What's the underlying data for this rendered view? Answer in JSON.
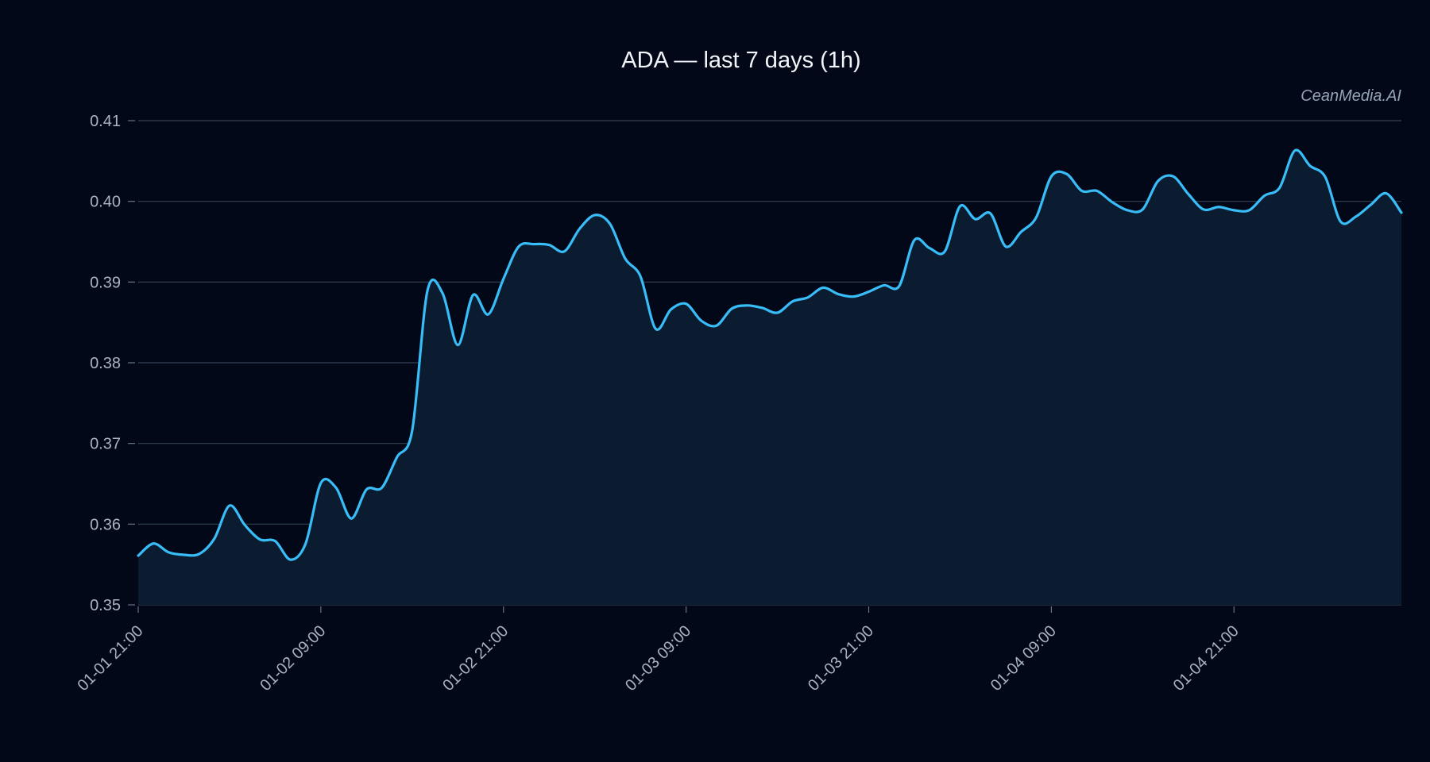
{
  "chart_data": {
    "type": "area",
    "title": "ADA — last 7 days (1h)",
    "watermark": "CeanMedia.AI",
    "ylim": [
      0.35,
      0.41
    ],
    "yticks": [
      "0.35",
      "0.36",
      "0.37",
      "0.38",
      "0.39",
      "0.40",
      "0.41"
    ],
    "xlim": [
      "01-01 21:00",
      "01-05 08:00"
    ],
    "xticks": [
      "01-01 21:00",
      "01-02 09:00",
      "01-02 21:00",
      "01-03 09:00",
      "01-03 21:00",
      "01-04 09:00",
      "01-04 21:00"
    ],
    "grid": true,
    "colors": {
      "line": "#38bdf8",
      "fill": "#0b1c30",
      "background": "#020817"
    },
    "series": [
      {
        "x": [
          "01-01 21:00",
          "01-01 22:00",
          "01-01 23:00",
          "01-02 00:00",
          "01-02 01:00",
          "01-02 02:00",
          "01-02 03:00",
          "01-02 04:00",
          "01-02 05:00",
          "01-02 06:00",
          "01-02 07:00",
          "01-02 08:00",
          "01-02 09:00",
          "01-02 10:00",
          "01-02 11:00",
          "01-02 12:00",
          "01-02 13:00",
          "01-02 14:00",
          "01-02 15:00",
          "01-02 16:00",
          "01-02 17:00",
          "01-02 18:00",
          "01-02 19:00",
          "01-02 20:00",
          "01-02 21:00",
          "01-02 22:00",
          "01-02 23:00",
          "01-03 00:00",
          "01-03 01:00",
          "01-03 02:00",
          "01-03 03:00",
          "01-03 04:00",
          "01-03 05:00",
          "01-03 06:00",
          "01-03 07:00",
          "01-03 08:00",
          "01-03 09:00",
          "01-03 10:00",
          "01-03 11:00",
          "01-03 12:00",
          "01-03 13:00",
          "01-03 14:00",
          "01-03 15:00",
          "01-03 16:00",
          "01-03 17:00",
          "01-03 18:00",
          "01-03 19:00",
          "01-03 20:00",
          "01-03 21:00",
          "01-03 22:00",
          "01-03 23:00",
          "01-04 00:00",
          "01-04 01:00",
          "01-04 02:00",
          "01-04 03:00",
          "01-04 04:00",
          "01-04 05:00",
          "01-04 06:00",
          "01-04 07:00",
          "01-04 08:00",
          "01-04 09:00",
          "01-04 10:00",
          "01-04 11:00",
          "01-04 12:00",
          "01-04 13:00",
          "01-04 14:00",
          "01-04 15:00",
          "01-04 16:00",
          "01-04 17:00",
          "01-04 18:00",
          "01-04 19:00",
          "01-04 20:00",
          "01-04 21:00",
          "01-04 22:00",
          "01-04 23:00",
          "01-05 00:00",
          "01-05 01:00",
          "01-05 02:00",
          "01-05 03:00",
          "01-05 04:00",
          "01-05 05:00",
          "01-05 06:00",
          "01-05 07:00",
          "01-05 08:00"
        ],
        "values": [
          0.3561,
          0.3576,
          0.3565,
          0.3562,
          0.3563,
          0.3582,
          0.3623,
          0.3599,
          0.3581,
          0.3579,
          0.3556,
          0.3576,
          0.3651,
          0.3645,
          0.3607,
          0.3643,
          0.3645,
          0.3683,
          0.3716,
          0.3889,
          0.3886,
          0.3822,
          0.3884,
          0.386,
          0.3904,
          0.3944,
          0.3947,
          0.3946,
          0.3938,
          0.3966,
          0.3983,
          0.3972,
          0.3929,
          0.3907,
          0.3842,
          0.3866,
          0.3873,
          0.3852,
          0.3846,
          0.3867,
          0.3871,
          0.3868,
          0.3862,
          0.3876,
          0.3881,
          0.3893,
          0.3885,
          0.3882,
          0.3888,
          0.3896,
          0.3895,
          0.3952,
          0.3942,
          0.3938,
          0.3994,
          0.3978,
          0.3985,
          0.3944,
          0.3962,
          0.398,
          0.4031,
          0.4034,
          0.4013,
          0.4013,
          0.3999,
          0.3989,
          0.399,
          0.4025,
          0.4031,
          0.4009,
          0.399,
          0.3993,
          0.3989,
          0.3989,
          0.4007,
          0.4017,
          0.4063,
          0.4044,
          0.403,
          0.3975,
          0.3981,
          0.3996,
          0.401,
          0.3986
        ]
      }
    ]
  }
}
